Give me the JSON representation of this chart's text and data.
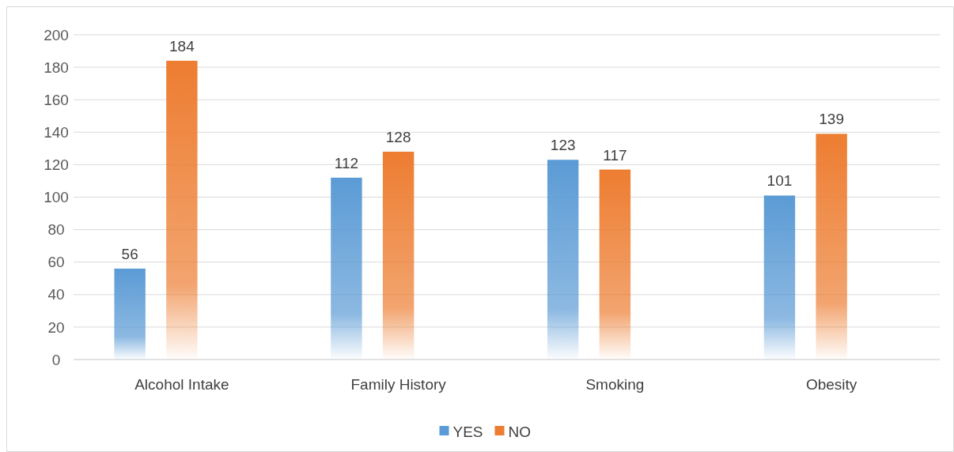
{
  "chart_data": {
    "type": "bar",
    "categories": [
      "Alcohol Intake",
      "Family History",
      "Smoking",
      "Obesity"
    ],
    "series": [
      {
        "name": "YES",
        "color": "#5b9bd5",
        "values": [
          56,
          112,
          123,
          101
        ]
      },
      {
        "name": "NO",
        "color": "#ed7d31",
        "values": [
          184,
          128,
          117,
          139
        ]
      }
    ],
    "ylim": [
      0,
      200
    ],
    "yticks": [
      0,
      20,
      40,
      60,
      80,
      100,
      120,
      140,
      160,
      180,
      200
    ],
    "grid": "y",
    "legend": "bottom",
    "data_labels": true
  }
}
